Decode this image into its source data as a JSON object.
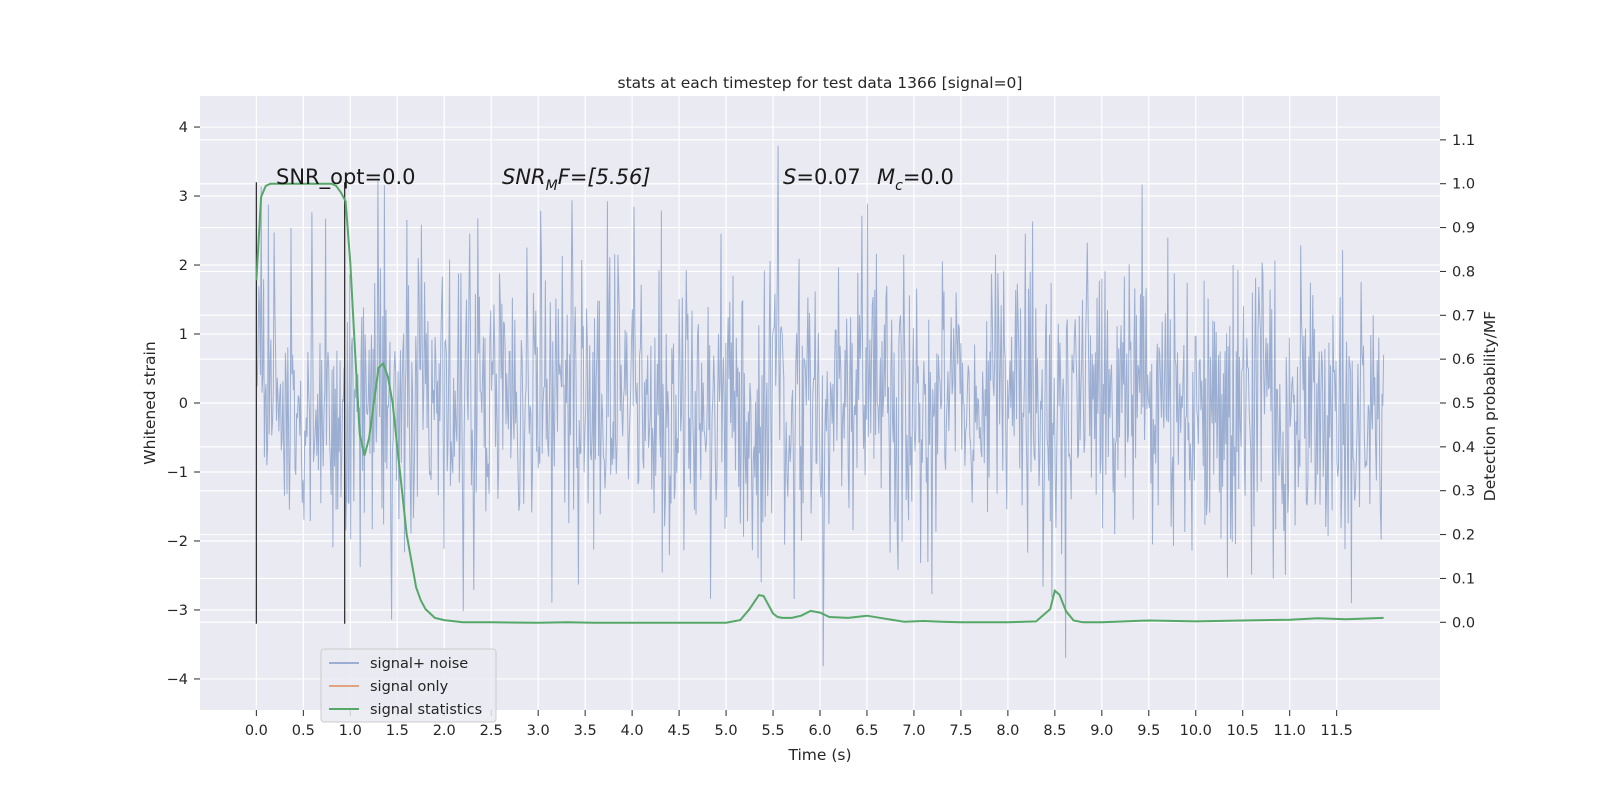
{
  "chart_data": {
    "type": "line",
    "title": "stats at each timestep for test data 1366 [signal=0]",
    "xlabel": "Time (s)",
    "ylabel": "Whitened strain",
    "y2label": "Detection probability/MF",
    "xlim": [
      -0.6,
      12.6
    ],
    "ylim": [
      -4.45,
      4.45
    ],
    "y2lim": [
      -0.2,
      1.2
    ],
    "grid": true,
    "legend_position": "lower-left",
    "x_ticks": [
      "0.0",
      "0.5",
      "1.0",
      "1.5",
      "2.0",
      "2.5",
      "3.0",
      "3.5",
      "4.0",
      "4.5",
      "5.0",
      "5.5",
      "6.0",
      "6.5",
      "7.0",
      "7.5",
      "8.0",
      "8.5",
      "9.0",
      "9.5",
      "10.0",
      "10.5",
      "11.0",
      "11.5"
    ],
    "y_ticks": [
      "4",
      "3",
      "2",
      "1",
      "0",
      "−1",
      "−2",
      "−3",
      "−4"
    ],
    "y2_ticks": [
      "1.1",
      "1.0",
      "0.9",
      "0.8",
      "0.7",
      "0.6",
      "0.5",
      "0.4",
      "0.3",
      "0.2",
      "0.1",
      "0.0"
    ],
    "annotations": {
      "snr_opt": "SNR_opt=0.0",
      "snr_mf_base": "SNR",
      "snr_mf_sub": "M",
      "snr_mf_rest": "F=[5.56]",
      "s_base": "S",
      "s_value": "=0.07",
      "mc_base": "M",
      "mc_sub": "c",
      "mc_value": "=0.0"
    },
    "marker_lines_x": [
      0.0,
      0.94
    ],
    "noise": {
      "x_start": 0.0,
      "x_end": 12.0,
      "typical_amplitude": 2.0,
      "max": 4.1,
      "min": -4.05
    },
    "series": [
      {
        "name": "signal+ noise",
        "color": "#4c72b0",
        "style": "noise-band"
      },
      {
        "name": "signal only",
        "color": "#dd8452",
        "values": []
      },
      {
        "name": "signal statistics",
        "color": "#55a868",
        "axis": "right",
        "x": [
          0.0,
          0.05,
          0.1,
          0.15,
          0.2,
          0.3,
          0.4,
          0.5,
          0.6,
          0.7,
          0.8,
          0.85,
          0.9,
          0.95,
          1.0,
          1.05,
          1.1,
          1.15,
          1.2,
          1.25,
          1.3,
          1.35,
          1.4,
          1.45,
          1.5,
          1.55,
          1.6,
          1.65,
          1.7,
          1.75,
          1.8,
          1.85,
          1.9,
          2.0,
          2.2,
          2.5,
          3.0,
          3.3,
          3.6,
          4.0,
          4.5,
          5.0,
          5.15,
          5.25,
          5.35,
          5.4,
          5.45,
          5.5,
          5.55,
          5.6,
          5.7,
          5.8,
          5.9,
          6.0,
          6.1,
          6.3,
          6.5,
          6.7,
          6.9,
          7.1,
          7.3,
          7.5,
          8.0,
          8.3,
          8.45,
          8.5,
          8.55,
          8.62,
          8.7,
          8.8,
          9.0,
          9.5,
          10.0,
          10.5,
          11.0,
          11.3,
          11.6,
          12.0
        ],
        "values": [
          0.78,
          0.97,
          0.995,
          1.0,
          1.0,
          1.0,
          1.0,
          1.0,
          1.0,
          1.0,
          1.0,
          0.995,
          0.98,
          0.96,
          0.82,
          0.62,
          0.43,
          0.38,
          0.42,
          0.5,
          0.58,
          0.59,
          0.56,
          0.5,
          0.4,
          0.3,
          0.2,
          0.14,
          0.08,
          0.05,
          0.03,
          0.02,
          0.01,
          0.005,
          0.0,
          0.0,
          -0.001,
          0.0,
          -0.001,
          -0.001,
          -0.001,
          -0.001,
          0.005,
          0.03,
          0.062,
          0.06,
          0.04,
          0.02,
          0.012,
          0.01,
          0.01,
          0.015,
          0.026,
          0.022,
          0.012,
          0.01,
          0.015,
          0.008,
          0.001,
          0.003,
          0.001,
          0.0,
          0.0,
          0.002,
          0.03,
          0.072,
          0.063,
          0.025,
          0.004,
          0.0,
          0.0,
          0.004,
          0.002,
          0.004,
          0.006,
          0.009,
          0.007,
          0.01
        ]
      }
    ]
  }
}
